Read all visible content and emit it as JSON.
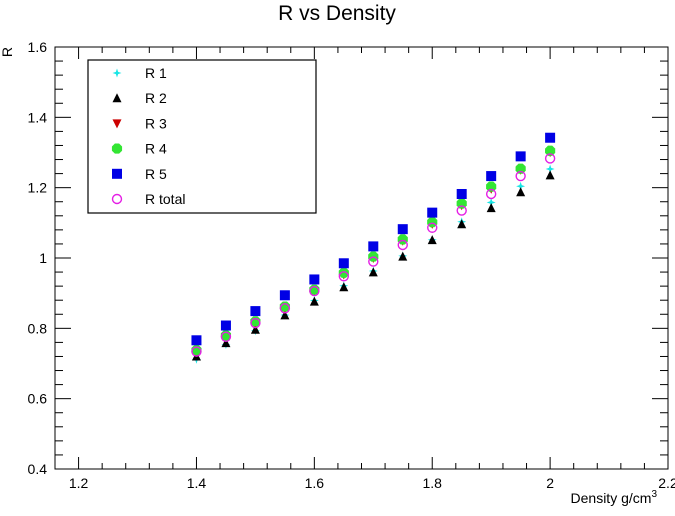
{
  "chart_data": {
    "type": "scatter",
    "title": "R vs Density",
    "xlabel": "Density g/cm",
    "xlabel_superscript": "3",
    "ylabel": "R",
    "xlim": [
      1.16,
      2.2
    ],
    "ylim": [
      0.4,
      1.6
    ],
    "x_ticks": [
      "1.2",
      "1.4",
      "1.6",
      "1.8",
      "2",
      "2.2"
    ],
    "y_ticks": [
      "0.4",
      "0.6",
      "0.8",
      "1",
      "1.2",
      "1.4",
      "1.6"
    ],
    "grid": false,
    "legend_position": "top-left",
    "x": [
      1.4,
      1.45,
      1.5,
      1.55,
      1.6,
      1.65,
      1.7,
      1.75,
      1.8,
      1.85,
      1.9,
      1.95,
      2.0
    ],
    "series": [
      {
        "name": "R 1",
        "marker": "star",
        "color": "#19e5e5",
        "values": [
          0.712,
          0.754,
          0.793,
          0.838,
          0.879,
          0.921,
          0.963,
          1.006,
          1.052,
          1.103,
          1.158,
          1.204,
          1.253
        ]
      },
      {
        "name": "R 2",
        "marker": "triangle-up",
        "color": "#000000",
        "values": [
          0.72,
          0.758,
          0.796,
          0.837,
          0.876,
          0.917,
          0.959,
          1.004,
          1.051,
          1.096,
          1.142,
          1.187,
          1.235
        ]
      },
      {
        "name": "R 3",
        "marker": "triangle-down",
        "color": "#cc0000",
        "values": [
          0.732,
          0.775,
          0.813,
          0.855,
          0.906,
          0.953,
          1.0,
          1.049,
          1.097,
          1.15,
          1.197,
          1.251,
          1.301
        ]
      },
      {
        "name": "R 4",
        "marker": "octagon",
        "color": "#33e533",
        "values": [
          0.738,
          0.78,
          0.82,
          0.862,
          0.91,
          0.958,
          1.004,
          1.053,
          1.102,
          1.155,
          1.203,
          1.254,
          1.305
        ]
      },
      {
        "name": "R 5",
        "marker": "square",
        "color": "#0000e5",
        "values": [
          0.766,
          0.808,
          0.849,
          0.894,
          0.939,
          0.985,
          1.033,
          1.082,
          1.129,
          1.182,
          1.233,
          1.289,
          1.342
        ]
      },
      {
        "name": "R total",
        "marker": "open-circle",
        "color": "#e51ee5",
        "values": [
          0.734,
          0.776,
          0.815,
          0.857,
          0.906,
          0.948,
          0.99,
          1.037,
          1.086,
          1.135,
          1.182,
          1.233,
          1.283
        ]
      }
    ]
  }
}
